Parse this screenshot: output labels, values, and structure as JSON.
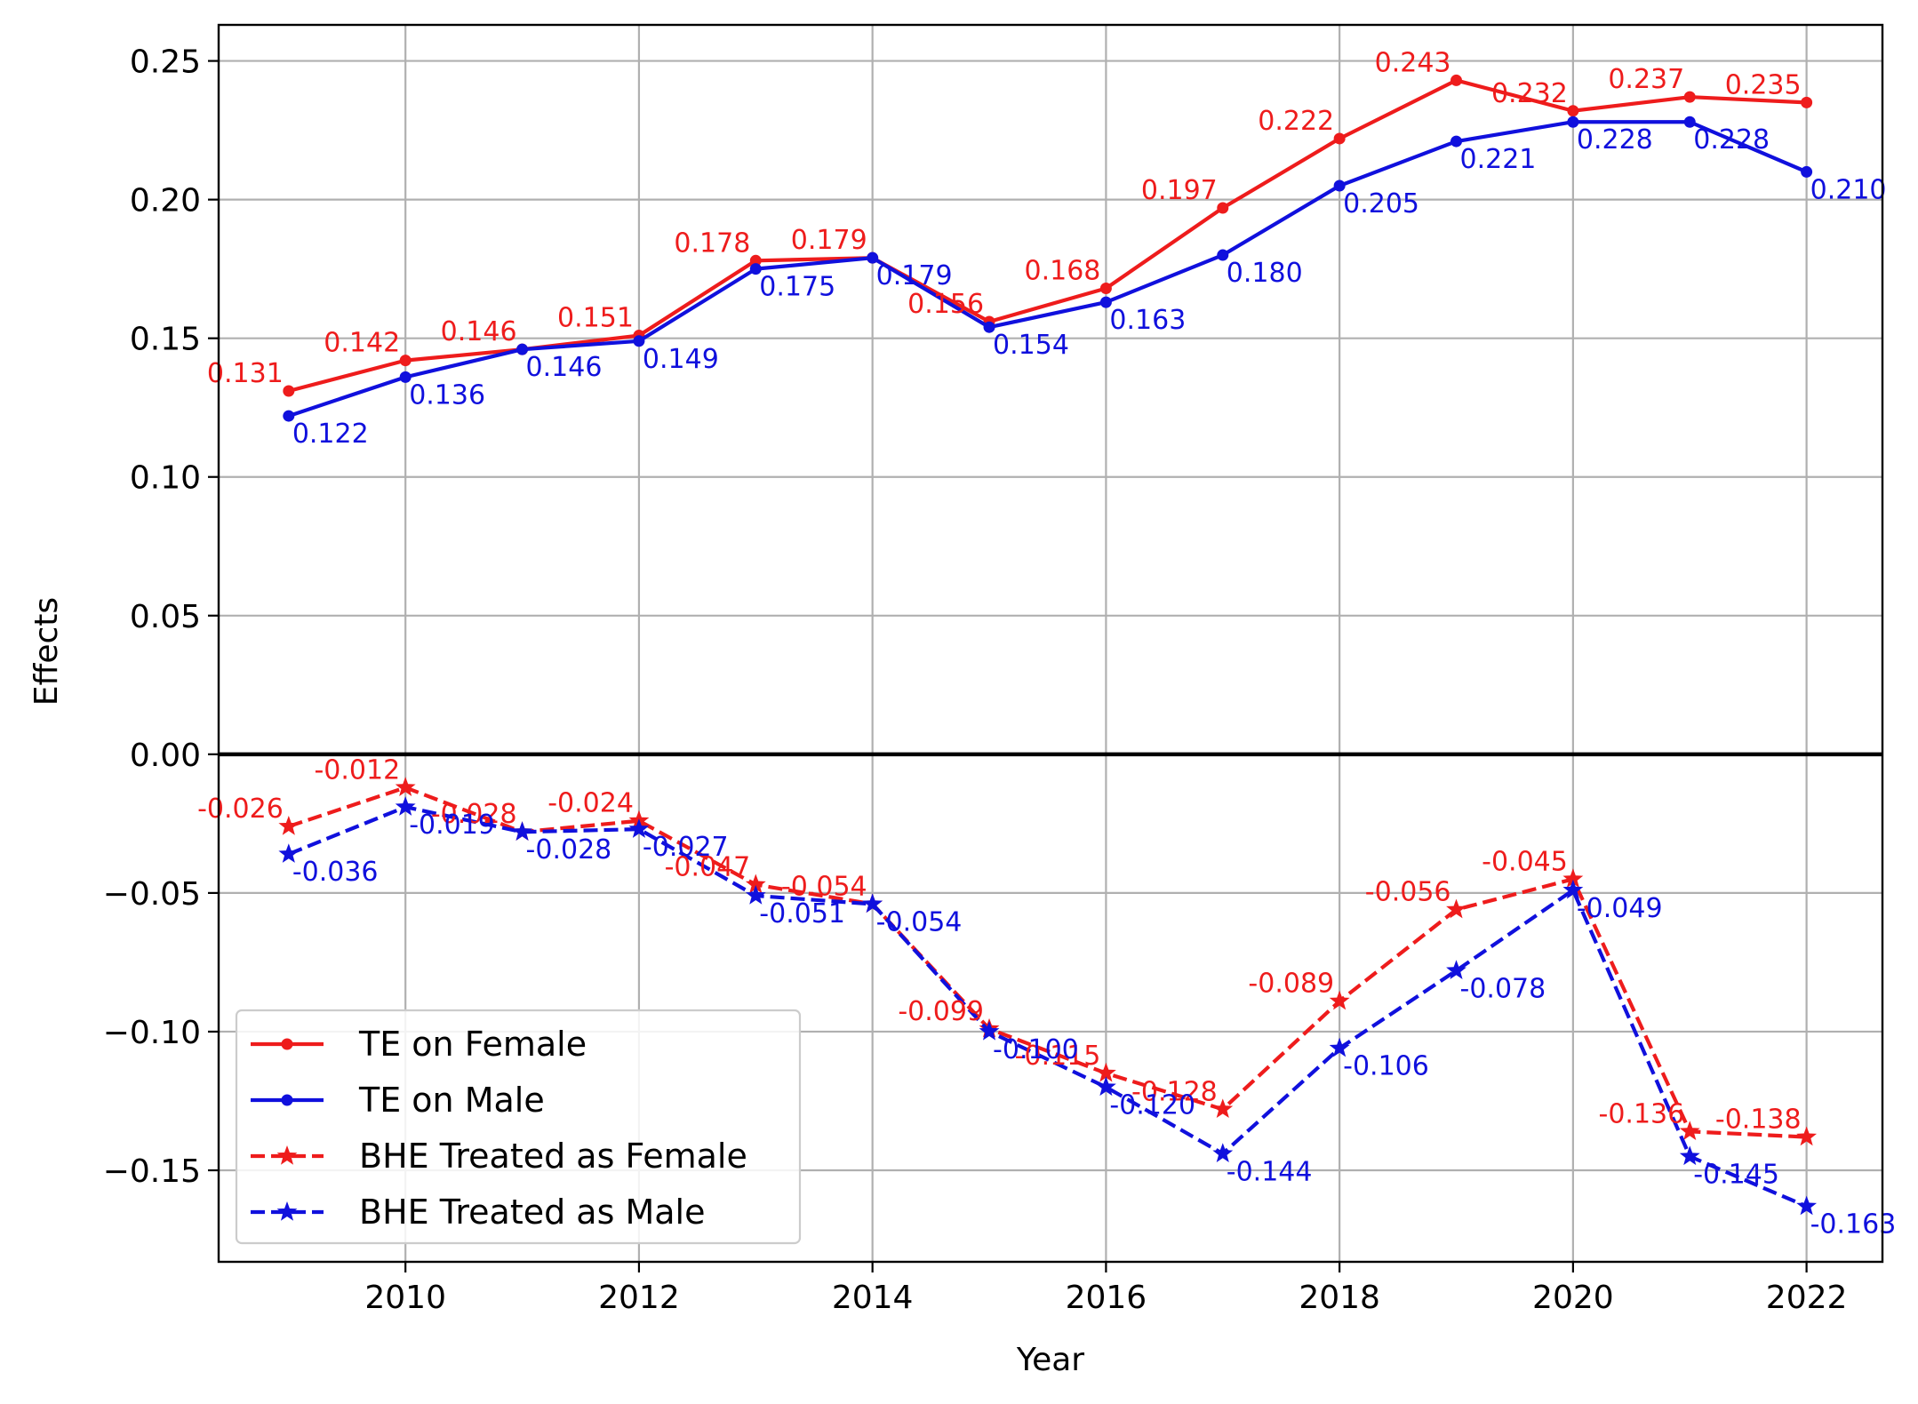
{
  "chart_data": {
    "type": "line",
    "title": "",
    "xlabel": "Year",
    "ylabel": "Effects",
    "xlim": [
      2008.4,
      2022.65
    ],
    "ylim": [
      -0.183,
      0.263
    ],
    "x_ticks": [
      2010,
      2012,
      2014,
      2016,
      2018,
      2020,
      2022
    ],
    "y_ticks": [
      0.25,
      0.2,
      0.15,
      0.1,
      0.05,
      0.0,
      -0.05,
      -0.1,
      -0.15
    ],
    "y_tick_labels": [
      "0.25",
      "0.20",
      "0.15",
      "0.10",
      "0.05",
      "0.00",
      "−0.05",
      "−0.10",
      "−0.15"
    ],
    "x_tick_labels": [
      "2010",
      "2012",
      "2014",
      "2016",
      "2018",
      "2020",
      "2022"
    ],
    "grid": true,
    "zero_line": true,
    "legend_position": "lower-left",
    "x": [
      2009,
      2010,
      2011,
      2012,
      2013,
      2014,
      2015,
      2016,
      2017,
      2018,
      2019,
      2020,
      2021,
      2022
    ],
    "series": [
      {
        "name": "TE on Female",
        "color": "#ee1c1c",
        "line_style": "solid",
        "marker": "dot",
        "label_position": "above-left",
        "values": [
          0.131,
          0.142,
          0.146,
          0.151,
          0.178,
          0.179,
          0.156,
          0.168,
          0.197,
          0.222,
          0.243,
          0.232,
          0.237,
          0.235
        ],
        "labels": [
          "0.131",
          "0.142",
          "0.146",
          "0.151",
          "0.178",
          "0.179",
          "0.156",
          "0.168",
          "0.197",
          "0.222",
          "0.243",
          "0.232",
          "0.237",
          "0.235"
        ]
      },
      {
        "name": "TE on Male",
        "color": "#1010dd",
        "line_style": "solid",
        "marker": "dot",
        "label_position": "below-right",
        "values": [
          0.122,
          0.136,
          0.146,
          0.149,
          0.175,
          0.179,
          0.154,
          0.163,
          0.18,
          0.205,
          0.221,
          0.228,
          0.228,
          0.21
        ],
        "labels": [
          "0.122",
          "0.136",
          "0.146",
          "0.149",
          "0.175",
          "0.179",
          "0.154",
          "0.163",
          "0.180",
          "0.205",
          "0.221",
          "0.228",
          "0.228",
          "0.210"
        ]
      },
      {
        "name": "BHE Treated as Female",
        "color": "#ee1c1c",
        "line_style": "dashed",
        "marker": "star",
        "label_position": "above-left",
        "values": [
          -0.026,
          -0.012,
          -0.028,
          -0.024,
          -0.047,
          -0.054,
          -0.099,
          -0.115,
          -0.128,
          -0.089,
          -0.056,
          -0.045,
          -0.136,
          -0.138
        ],
        "labels": [
          "-0.026",
          "-0.012",
          "-0.028",
          "-0.024",
          "-0.047",
          "-0.054",
          "-0.099",
          "-0.115",
          "-0.128",
          "-0.089",
          "-0.056",
          "-0.045",
          "-0.136",
          "-0.138"
        ]
      },
      {
        "name": "BHE Treated as Male",
        "color": "#1010dd",
        "line_style": "dashed",
        "marker": "star",
        "label_position": "below-right",
        "values": [
          -0.036,
          -0.019,
          -0.028,
          -0.027,
          -0.051,
          -0.054,
          -0.1,
          -0.12,
          -0.144,
          -0.106,
          -0.078,
          -0.049,
          -0.145,
          -0.163
        ],
        "labels": [
          "-0.036",
          "-0.019",
          "-0.028",
          "-0.027",
          "-0.051",
          "-0.054",
          "-0.100",
          "-0.120",
          "-0.144",
          "-0.106",
          "-0.078",
          "-0.049",
          "-0.145",
          "-0.163"
        ]
      }
    ]
  }
}
